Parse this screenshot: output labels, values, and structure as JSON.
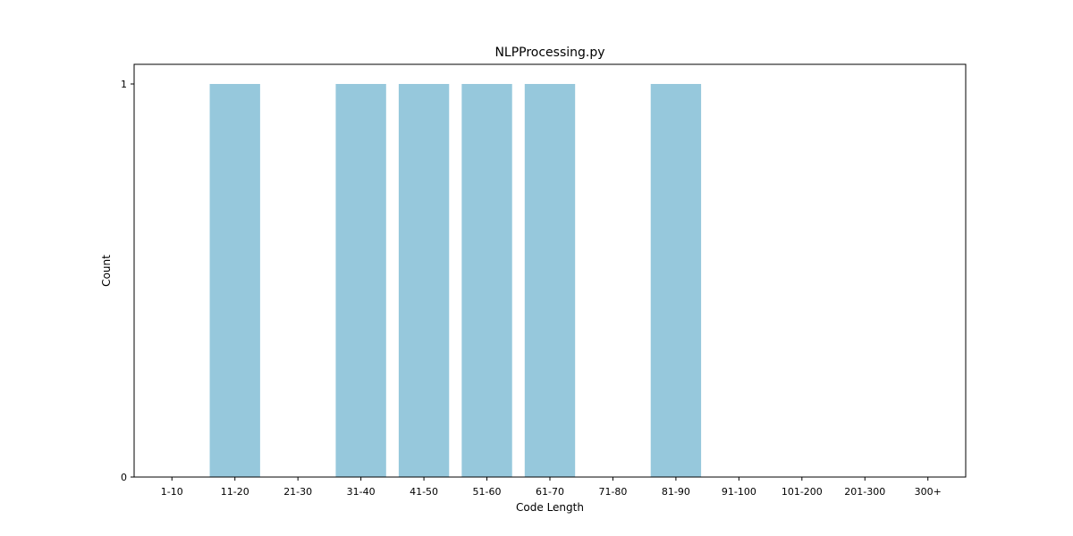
{
  "chart_data": {
    "type": "bar",
    "title": "NLPProcessing.py",
    "xlabel": "Code Length",
    "ylabel": "Count",
    "categories": [
      "1-10",
      "11-20",
      "21-30",
      "31-40",
      "41-50",
      "51-60",
      "61-70",
      "71-80",
      "81-90",
      "91-100",
      "101-200",
      "201-300",
      "300+"
    ],
    "values": [
      0,
      1,
      0,
      1,
      1,
      1,
      1,
      0,
      1,
      0,
      0,
      0,
      0
    ],
    "yticks": [
      0,
      1
    ],
    "ylim": [
      0,
      1.05
    ],
    "grid": false,
    "bar_color": "#96c8dc"
  }
}
